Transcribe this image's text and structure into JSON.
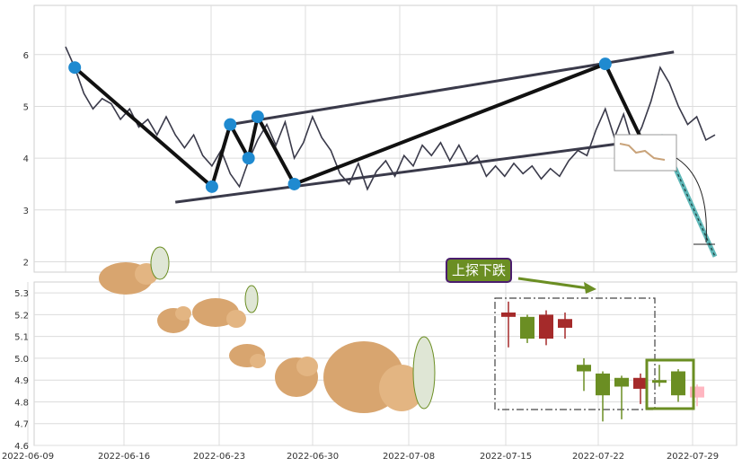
{
  "chart_data": [
    {
      "type": "line",
      "panel": "top",
      "title": "",
      "ylim": [
        1.8,
        6.95
      ],
      "y_ticks": [
        "2",
        "3",
        "4",
        "5",
        "6"
      ],
      "grid": true,
      "series": [
        {
          "values": [
            [
              0,
              6.15
            ],
            [
              2,
              5.75
            ],
            [
              4,
              5.25
            ],
            [
              6,
              4.95
            ],
            [
              8,
              5.15
            ],
            [
              10,
              5.05
            ],
            [
              12,
              4.75
            ],
            [
              14,
              4.95
            ],
            [
              16,
              4.6
            ],
            [
              18,
              4.75
            ],
            [
              20,
              4.45
            ],
            [
              22,
              4.8
            ],
            [
              24,
              4.45
            ],
            [
              26,
              4.2
            ],
            [
              28,
              4.45
            ],
            [
              30,
              4.05
            ],
            [
              32,
              3.85
            ],
            [
              34,
              4.15
            ],
            [
              36,
              3.7
            ],
            [
              38,
              3.45
            ],
            [
              40,
              3.95
            ],
            [
              42,
              4.35
            ],
            [
              44,
              4.65
            ],
            [
              46,
              4.25
            ],
            [
              48,
              4.7
            ],
            [
              50,
              4.0
            ],
            [
              52,
              4.3
            ],
            [
              54,
              4.8
            ],
            [
              56,
              4.4
            ],
            [
              58,
              4.15
            ],
            [
              60,
              3.7
            ],
            [
              62,
              3.5
            ],
            [
              64,
              3.9
            ],
            [
              66,
              3.4
            ],
            [
              68,
              3.75
            ],
            [
              70,
              3.95
            ],
            [
              72,
              3.65
            ],
            [
              74,
              4.05
            ],
            [
              76,
              3.85
            ],
            [
              78,
              4.25
            ],
            [
              80,
              4.05
            ],
            [
              82,
              4.3
            ],
            [
              84,
              3.95
            ],
            [
              86,
              4.25
            ],
            [
              88,
              3.9
            ],
            [
              90,
              4.05
            ],
            [
              92,
              3.65
            ],
            [
              94,
              3.85
            ],
            [
              96,
              3.65
            ],
            [
              98,
              3.9
            ],
            [
              100,
              3.7
            ],
            [
              102,
              3.85
            ],
            [
              104,
              3.6
            ],
            [
              106,
              3.8
            ],
            [
              108,
              3.65
            ],
            [
              110,
              3.95
            ],
            [
              112,
              4.15
            ],
            [
              114,
              4.05
            ],
            [
              116,
              4.55
            ],
            [
              118,
              4.95
            ],
            [
              120,
              4.4
            ],
            [
              122,
              4.85
            ],
            [
              124,
              4.25
            ],
            [
              126,
              4.6
            ],
            [
              128,
              5.1
            ],
            [
              130,
              5.75
            ],
            [
              132,
              5.45
            ],
            [
              134,
              5.0
            ],
            [
              136,
              4.65
            ],
            [
              138,
              4.8
            ],
            [
              140,
              4.35
            ],
            [
              142,
              4.45
            ]
          ]
        }
      ],
      "annotations": [
        {
          "type": "zigzag",
          "points": [
            [
              2,
              5.75
            ],
            [
              32,
              3.45
            ],
            [
              36,
              4.65
            ],
            [
              40,
              4.0
            ],
            [
              42,
              4.8
            ],
            [
              50,
              3.5
            ],
            [
              118,
              5.82
            ],
            [
              126,
              4.35
            ]
          ]
        },
        {
          "type": "trendline",
          "points": [
            [
              24,
              3.15
            ],
            [
              133,
              4.42
            ]
          ]
        },
        {
          "type": "trendline",
          "points": [
            [
              36,
              4.65
            ],
            [
              133,
              6.05
            ]
          ]
        },
        {
          "type": "projection",
          "points": [
            [
              130,
              4.45
            ],
            [
              142,
              2.1
            ]
          ]
        }
      ]
    },
    {
      "type": "candlestick",
      "panel": "bottom",
      "title": "",
      "ylim": [
        4.6,
        5.35
      ],
      "y_ticks": [
        "4.6",
        "4.7",
        "4.8",
        "4.9",
        "5.0",
        "5.1",
        "5.2",
        "5.3"
      ],
      "x_ticks": [
        "2022-06-09",
        "2022-06-16",
        "2022-06-23",
        "2022-06-30",
        "2022-07-08",
        "2022-07-15",
        "2022-07-22",
        "2022-07-29"
      ],
      "grid": true,
      "candles": [
        {
          "slot": 0,
          "open": 5.19,
          "close": 5.21,
          "high": 5.26,
          "low": 5.05,
          "color": "#a52a2a"
        },
        {
          "slot": 1,
          "open": 5.19,
          "close": 5.09,
          "high": 5.2,
          "low": 5.07,
          "color": "#6b8e23"
        },
        {
          "slot": 2,
          "open": 5.09,
          "close": 5.2,
          "high": 5.22,
          "low": 5.06,
          "color": "#a52a2a"
        },
        {
          "slot": 3,
          "open": 5.14,
          "close": 5.18,
          "high": 5.21,
          "low": 5.09,
          "color": "#a52a2a"
        },
        {
          "slot": 4,
          "open": 4.97,
          "close": 4.94,
          "high": 5.0,
          "low": 4.85,
          "color": "#6b8e23"
        },
        {
          "slot": 5,
          "open": 4.93,
          "close": 4.83,
          "high": 4.94,
          "low": 4.71,
          "color": "#6b8e23"
        },
        {
          "slot": 6,
          "open": 4.91,
          "close": 4.87,
          "high": 4.92,
          "low": 4.72,
          "color": "#6b8e23"
        },
        {
          "slot": 7,
          "open": 4.86,
          "close": 4.91,
          "high": 4.93,
          "low": 4.79,
          "color": "#a52a2a"
        },
        {
          "slot": 8,
          "open": 4.9,
          "close": 4.9,
          "high": 4.97,
          "low": 4.87,
          "color": "#6b8e23"
        },
        {
          "slot": 9,
          "open": 4.94,
          "close": 4.83,
          "high": 4.95,
          "low": 4.8,
          "color": "#6b8e23"
        },
        {
          "slot": 10,
          "open": 4.82,
          "close": 4.87,
          "high": 4.88,
          "low": 4.78,
          "color": "#ffb6c1"
        }
      ],
      "callout": {
        "text": "上探下跌"
      }
    }
  ],
  "colors": {
    "price_line": "#3a3a4a",
    "marker": "#1f8ad0",
    "up": "#a52a2a",
    "down": "#6b8e23",
    "projection": "#5fb8b8",
    "callout_bg": "#6b8e23",
    "callout_border": "#4b1d6e"
  }
}
